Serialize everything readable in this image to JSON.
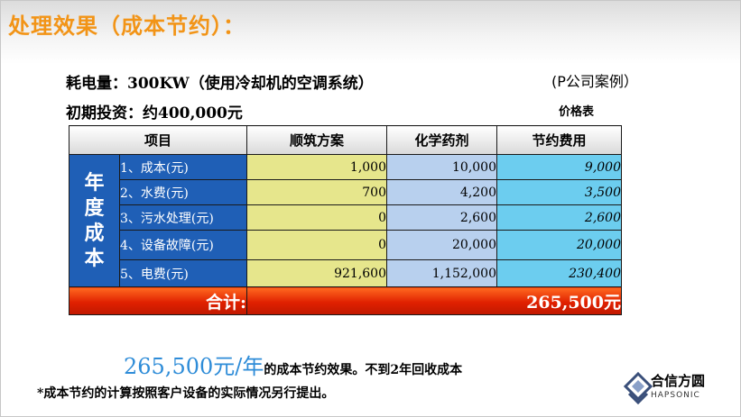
{
  "title": "处理效果（成本节约）：",
  "info": {
    "power": "耗电量：300KW（使用冷却机的空调系统）",
    "case": "(P公司案例）",
    "investment": "初期投资：约400,000元",
    "price_table": "价格表"
  },
  "table": {
    "headers": [
      "项目",
      "顺筑方案",
      "化学药剂",
      "节约费用"
    ],
    "group_label": "年度成本",
    "group_chars": [
      "年",
      "度",
      "成",
      "本"
    ],
    "rows": [
      {
        "item": "1、成本(元)",
        "a": "1,000",
        "b": "10,000",
        "c": "9,000"
      },
      {
        "item": "2、水费(元)",
        "a": "700",
        "b": "4,200",
        "c": "3,500"
      },
      {
        "item": "3、污水处理(元)",
        "a": "0",
        "b": "2,600",
        "c": "2,600"
      },
      {
        "item": "4、设备故障(元)",
        "a": "0",
        "b": "20,000",
        "c": "20,000"
      },
      {
        "item": "5、电费(元)",
        "a": "921,600",
        "b": "1,152,000",
        "c": "230,400"
      }
    ],
    "total_label": "合计:",
    "total_value": "265,500元"
  },
  "summary": {
    "big": "265,500元/年",
    "rest": "的成本节约效果。不到2年回收成本"
  },
  "note": "*成本节约的计算按照客户设备的实际情况另行提出。",
  "logo": {
    "cn": "合信方圆",
    "en": "HAPSONIC"
  },
  "colors": {
    "title": "#f29417",
    "blue_cell": "#1f5fb6",
    "yellow_cell": "#e6e68c",
    "light_blue_cell": "#b8d0ee",
    "cyan_cell": "#6ccdef",
    "total_red": "#e02000",
    "summary_blue": "#2e8cd8",
    "zero_red": "#ff0000"
  }
}
